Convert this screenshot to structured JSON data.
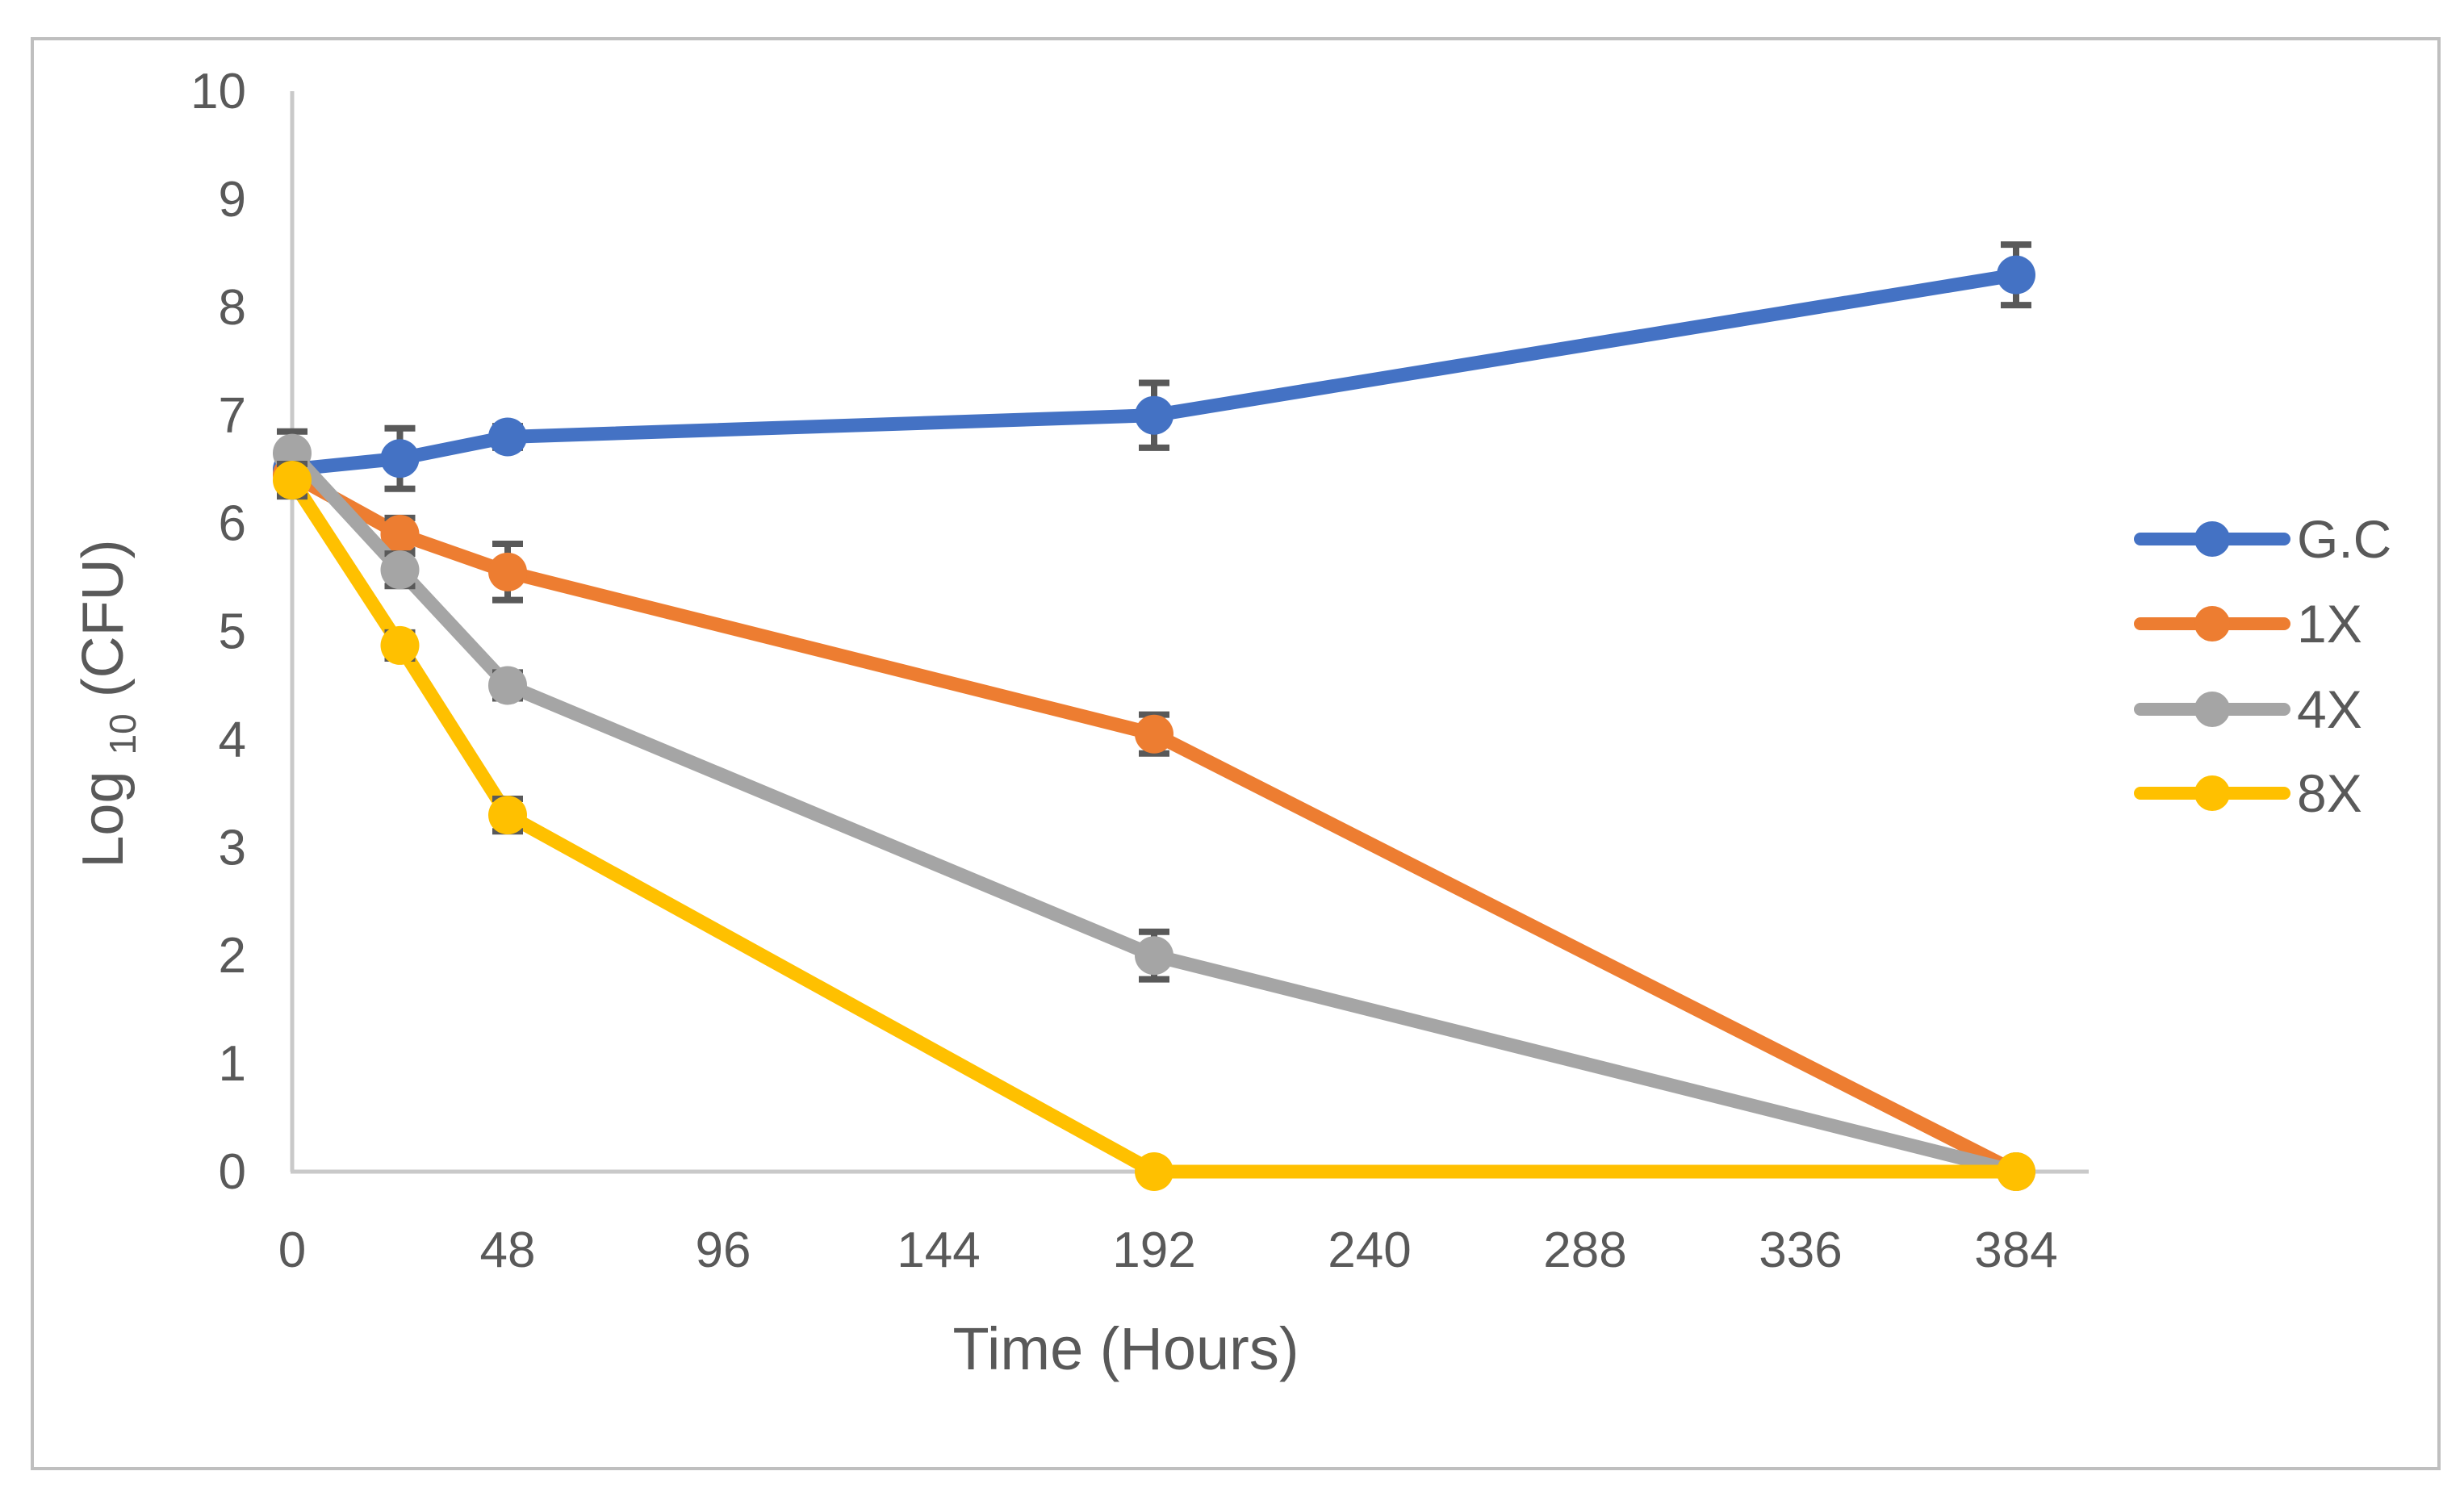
{
  "figure": {
    "background": "#FFFFFF",
    "border_color": "#BFBFBF",
    "text_color": "#595959",
    "axis_line_color": "#C9C9C9",
    "error_bar_color": "#595959"
  },
  "chart_data": {
    "type": "line",
    "title": "",
    "xlabel": "Time (Hours)",
    "ylabel": "Log10 (CFU)",
    "ylabel_parts": {
      "main": "Log",
      "sub": "10",
      "rest": " (CFU)"
    },
    "x": [
      0,
      24,
      48,
      192,
      384
    ],
    "xticks": [
      0,
      48,
      96,
      144,
      192,
      240,
      288,
      336,
      384
    ],
    "yticks": [
      0,
      1,
      2,
      3,
      4,
      5,
      6,
      7,
      8,
      9,
      10
    ],
    "xlim": [
      0,
      400
    ],
    "ylim": [
      0,
      10
    ],
    "grid": false,
    "legend_position": "right",
    "marker": "circle",
    "series": [
      {
        "name": "G.C",
        "color": "#4472C4",
        "values": [
          6.5,
          6.6,
          6.8,
          7.0,
          8.3
        ],
        "errors": [
          0.15,
          0.28,
          0.1,
          0.3,
          0.28
        ]
      },
      {
        "name": "1X",
        "color": "#ED7D31",
        "values": [
          6.45,
          5.9,
          5.55,
          4.05,
          0
        ],
        "errors": [
          0.15,
          0.15,
          0.26,
          0.18,
          0
        ]
      },
      {
        "name": "4X",
        "color": "#A5A5A5",
        "values": [
          6.65,
          5.57,
          4.5,
          2.0,
          0
        ],
        "errors": [
          0.2,
          0.15,
          0.12,
          0.22,
          0
        ]
      },
      {
        "name": "8X",
        "color": "#FFC000",
        "values": [
          6.4,
          4.87,
          3.3,
          0,
          0
        ],
        "errors": [
          0.15,
          0.12,
          0.15,
          0,
          0
        ]
      }
    ]
  }
}
